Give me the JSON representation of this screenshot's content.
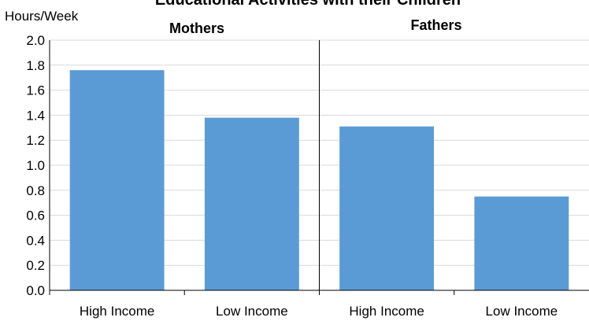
{
  "chart_data": {
    "type": "bar",
    "title": "Educational Activities with their Children",
    "ylabel": "Hours/Week",
    "xlabel": "",
    "ylim": [
      0,
      2.0
    ],
    "yticks": [
      "0.0",
      "0.2",
      "0.4",
      "0.6",
      "0.8",
      "1.0",
      "1.2",
      "1.4",
      "1.6",
      "1.8",
      "2.0"
    ],
    "grid": true,
    "legend": "none",
    "bar_color": "#5B9BD5",
    "groups": [
      {
        "label": "Mothers",
        "categories": [
          "High Income",
          "Low Income"
        ],
        "values": [
          1.76,
          1.38
        ]
      },
      {
        "label": "Fathers",
        "categories": [
          "High Income",
          "Low Income"
        ],
        "values": [
          1.31,
          0.75
        ]
      }
    ]
  }
}
